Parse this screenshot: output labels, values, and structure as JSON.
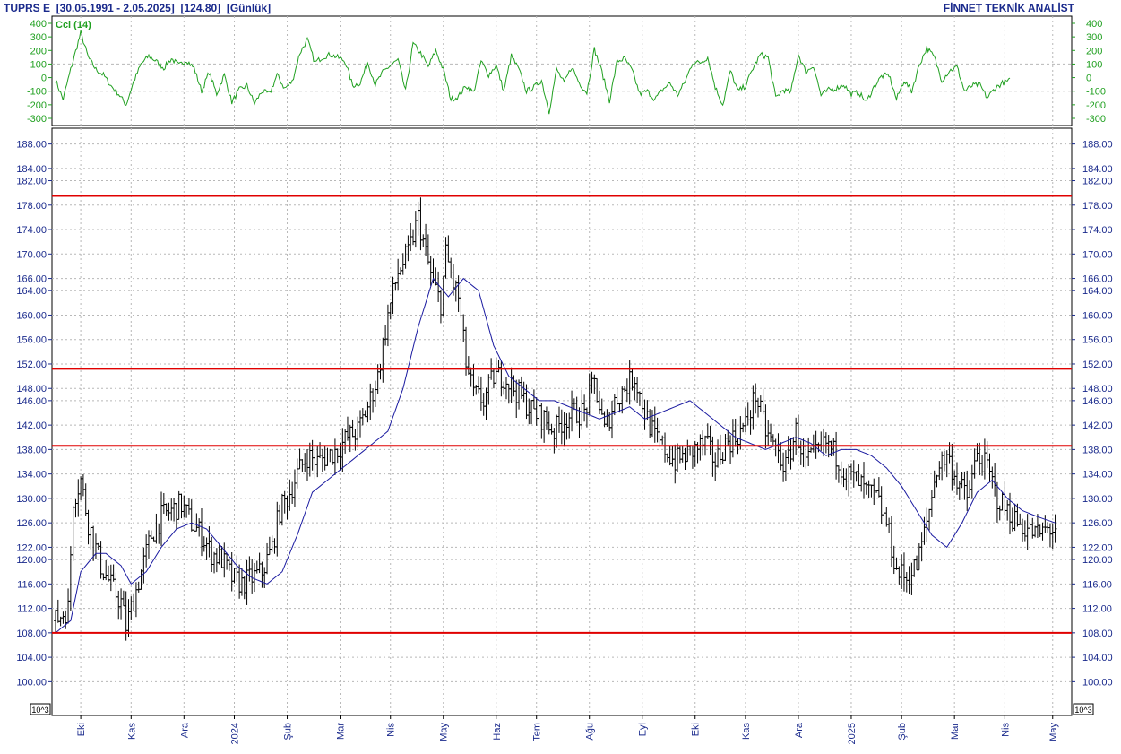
{
  "header": {
    "symbol": "TUPRS E",
    "range": "[30.05.1991 - 2.05.2025]",
    "last": "[124.80]",
    "period": "[Günlük]",
    "brand": "FİNNET TEKNİK ANALİST"
  },
  "colors": {
    "price_bars": "#000000",
    "moving_average": "#1a1aa0",
    "cci": "#20a020",
    "levels": "#e00000",
    "axis_text": "#1a2a8c",
    "grid": "#b8b8b8"
  },
  "chart_data": [
    {
      "type": "line",
      "panel": "top",
      "title": "Cci (14)",
      "ylim": [
        -300,
        400
      ],
      "yticks": [
        400,
        300,
        200,
        100,
        0,
        -100,
        -200,
        -300
      ],
      "grid": true,
      "reference_lines": [
        100,
        -100
      ],
      "x": [
        0,
        3,
        6,
        10,
        13,
        16,
        19,
        22,
        25,
        28,
        31,
        34,
        37,
        40,
        43,
        46,
        49,
        52,
        55,
        58,
        61,
        64,
        67,
        70,
        73,
        76,
        79,
        82,
        85,
        88,
        91,
        94,
        97,
        100,
        103,
        106,
        109,
        112,
        115,
        118,
        121,
        124,
        127,
        130,
        133,
        136,
        139,
        142,
        145,
        148,
        151,
        154,
        157,
        160,
        163,
        166,
        169,
        172,
        175,
        178,
        181,
        184,
        187,
        190,
        193,
        196,
        199,
        202,
        205,
        208,
        211,
        214,
        217,
        220,
        223,
        226,
        229,
        232,
        235,
        238,
        241,
        244,
        247,
        250,
        253,
        256,
        259,
        262,
        265,
        268,
        271,
        274,
        277,
        280,
        283,
        286,
        289,
        292,
        295,
        298,
        301,
        304,
        307,
        310,
        313,
        316,
        319,
        322,
        325,
        328,
        331,
        334,
        337,
        340,
        343,
        346,
        349,
        352,
        355,
        358,
        361,
        364,
        367,
        370,
        373,
        376,
        379
      ],
      "values": [
        -20,
        -160,
        60,
        330,
        150,
        60,
        20,
        -60,
        -120,
        -200,
        -30,
        100,
        160,
        120,
        70,
        140,
        90,
        130,
        70,
        -100,
        40,
        -120,
        20,
        -180,
        -90,
        -60,
        -190,
        -100,
        -120,
        20,
        -80,
        -30,
        180,
        280,
        110,
        150,
        170,
        150,
        120,
        -60,
        -40,
        110,
        -50,
        40,
        90,
        130,
        -100,
        250,
        180,
        80,
        200,
        60,
        -160,
        -140,
        -60,
        -110,
        120,
        20,
        90,
        -100,
        160,
        60,
        -100,
        -70,
        -20,
        -250,
        60,
        -40,
        80,
        -40,
        -110,
        210,
        40,
        -170,
        120,
        140,
        50,
        -120,
        -100,
        -160,
        -90,
        -40,
        -130,
        -30,
        110,
        110,
        150,
        -70,
        -200,
        50,
        -100,
        -60,
        70,
        170,
        150,
        -150,
        -90,
        -110,
        170,
        40,
        90,
        -130,
        -90,
        -80,
        -50,
        -120,
        -110,
        -180,
        -70,
        10,
        20,
        -160,
        -20,
        -100,
        90,
        220,
        150,
        -20,
        50,
        80,
        -100,
        -60,
        -50,
        -150,
        -80,
        -40,
        -20
      ],
      "ticks_left": [
        "400",
        "300",
        "200",
        "100",
        "0",
        "-100",
        "-200",
        "-300"
      ],
      "ticks_right": [
        "400",
        "300",
        "200",
        "100",
        "0",
        "-100",
        "-200",
        "-300"
      ]
    },
    {
      "type": "bar",
      "subtype": "ohlc",
      "panel": "main",
      "ylim": [
        98,
        190
      ],
      "ytick_labels": [
        "188.00",
        "184.00",
        "182.00",
        "178.00",
        "174.00",
        "170.00",
        "166.00",
        "164.00",
        "160.00",
        "156.00",
        "152.00",
        "148.00",
        "146.00",
        "142.00",
        "138.00",
        "134.00",
        "130.00",
        "126.00",
        "122.00",
        "120.00",
        "116.00",
        "112.00",
        "108.00",
        "104.00",
        "100.00"
      ],
      "horizontal_levels": [
        179.5,
        151.2,
        138.6,
        108.0
      ],
      "grid": true,
      "unit_label": "10^3",
      "x_month_labels": [
        {
          "label": "Eki",
          "x": 10
        },
        {
          "label": "Kas",
          "x": 30
        },
        {
          "label": "Ara",
          "x": 51
        },
        {
          "label": "2024",
          "x": 71
        },
        {
          "label": "Şub",
          "x": 92
        },
        {
          "label": "Mar",
          "x": 113
        },
        {
          "label": "Nis",
          "x": 133
        },
        {
          "label": "May",
          "x": 154
        },
        {
          "label": "Haz",
          "x": 175
        },
        {
          "label": "Tem",
          "x": 191
        },
        {
          "label": "Ağu",
          "x": 212
        },
        {
          "label": "Eyl",
          "x": 233
        },
        {
          "label": "Eki",
          "x": 254
        },
        {
          "label": "Kas",
          "x": 274
        },
        {
          "label": "Ara",
          "x": 295
        },
        {
          "label": "2025",
          "x": 316
        },
        {
          "label": "Şub",
          "x": 336
        },
        {
          "label": "Mar",
          "x": 357
        },
        {
          "label": "Nis",
          "x": 377
        },
        {
          "label": "May",
          "x": 396
        }
      ],
      "x_max": 400,
      "close_keypoints": {
        "x": [
          0,
          5,
          7,
          10,
          13,
          18,
          23,
          26,
          28,
          30,
          34,
          38,
          42,
          46,
          50,
          54,
          58,
          62,
          66,
          70,
          74,
          78,
          82,
          86,
          89,
          92,
          96,
          100,
          104,
          108,
          112,
          116,
          120,
          124,
          128,
          132,
          136,
          140,
          144,
          147,
          150,
          153,
          155,
          158,
          160,
          163,
          166,
          170,
          174,
          178,
          182,
          186,
          190,
          194,
          198,
          202,
          206,
          210,
          214,
          218,
          222,
          226,
          230,
          234,
          238,
          242,
          246,
          250,
          254,
          258,
          262,
          266,
          270,
          274,
          278,
          282,
          286,
          290,
          294,
          298,
          302,
          306,
          310,
          314,
          318,
          322,
          326,
          330,
          334,
          338,
          342,
          346,
          350,
          354,
          358,
          362,
          366,
          370,
          374,
          378,
          382,
          386,
          390,
          394,
          397
        ],
        "values": [
          110,
          112,
          130,
          133,
          126,
          119,
          115,
          113,
          109,
          112,
          118,
          124,
          127,
          128,
          129,
          126,
          124,
          121,
          120,
          117,
          116,
          117,
          118,
          122,
          128,
          130,
          134,
          137,
          136,
          137,
          138,
          140,
          141,
          145,
          150,
          160,
          167,
          170,
          176,
          170,
          165,
          162,
          170,
          165,
          163,
          152,
          147,
          146,
          150,
          150,
          148,
          146,
          144,
          143,
          141,
          143,
          144,
          144,
          149,
          141,
          146,
          148,
          150,
          144,
          140,
          138,
          136,
          137,
          138,
          139,
          136,
          139,
          140,
          142,
          147,
          141,
          138,
          135,
          141,
          136,
          137,
          139,
          137,
          134,
          133,
          131,
          130,
          126,
          118,
          117,
          119,
          126,
          135,
          137,
          133,
          130,
          137,
          135,
          130,
          128,
          126,
          125,
          124,
          125,
          125
        ]
      },
      "moving_average_keypoints": {
        "x": [
          0,
          6,
          10,
          16,
          20,
          26,
          30,
          36,
          42,
          48,
          54,
          60,
          66,
          72,
          78,
          84,
          90,
          96,
          102,
          108,
          114,
          120,
          126,
          132,
          138,
          144,
          150,
          156,
          162,
          168,
          174,
          180,
          186,
          192,
          198,
          204,
          210,
          216,
          222,
          228,
          234,
          240,
          246,
          252,
          258,
          264,
          270,
          276,
          282,
          288,
          294,
          300,
          306,
          312,
          318,
          324,
          330,
          336,
          342,
          348,
          354,
          360,
          366,
          372,
          378,
          384,
          390,
          397
        ],
        "values": [
          108,
          110,
          118,
          121,
          121,
          119,
          116,
          118,
          122,
          125,
          126,
          125,
          122,
          119,
          117,
          116,
          118,
          124,
          131,
          133,
          135,
          137,
          139,
          141,
          148,
          158,
          166,
          163,
          166,
          164,
          155,
          150,
          148,
          146,
          146,
          145,
          144,
          143,
          144,
          145,
          143,
          144,
          145,
          146,
          144,
          142,
          140,
          139,
          138,
          139,
          140,
          139,
          137,
          138,
          138,
          137,
          135,
          132,
          128,
          124,
          122,
          126,
          131,
          133,
          130,
          128,
          127,
          126
        ]
      },
      "ticks_left": [
        "188.00",
        "184.00",
        "182.00",
        "178.00",
        "174.00",
        "170.00",
        "166.00",
        "164.00",
        "160.00",
        "156.00",
        "152.00",
        "148.00",
        "146.00",
        "142.00",
        "138.00",
        "134.00",
        "130.00",
        "126.00",
        "122.00",
        "120.00",
        "116.00",
        "112.00",
        "108.00",
        "104.00",
        "100.00"
      ]
    }
  ],
  "labels": {
    "cci_title": "Cci (14)",
    "unit": "10^3"
  }
}
